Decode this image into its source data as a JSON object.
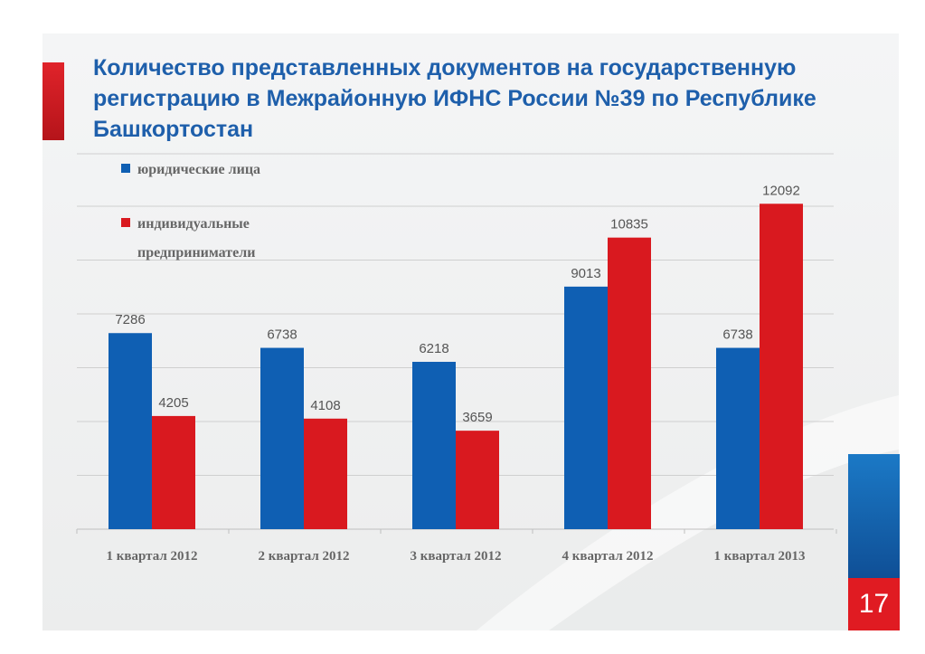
{
  "slide": {
    "title": "Количество представленных документов на государственную регистрацию в Межрайонную ИФНС России №39 по Республике Башкортостан",
    "page_number": "17"
  },
  "colors": {
    "series_blue": "#0f5fb3",
    "series_red": "#d9191f",
    "title_blue": "#1e5fab",
    "label_gray": "#555555"
  },
  "chart_data": {
    "type": "bar",
    "categories": [
      "1 квартал 2012",
      "2 квартал 2012",
      "3 квартал 2012",
      "4 квартал 2012",
      "1 квартал 2013"
    ],
    "series": [
      {
        "name": "юридические лица",
        "values": [
          7286,
          6738,
          6218,
          9013,
          6738
        ]
      },
      {
        "name": "индивидуальные предприниматели",
        "values": [
          4205,
          4108,
          3659,
          10835,
          12092
        ]
      }
    ],
    "ylim": [
      0,
      12000
    ],
    "y_gridline_step": 2000,
    "grid": true,
    "legend_position": "top-left",
    "data_labels": true
  }
}
